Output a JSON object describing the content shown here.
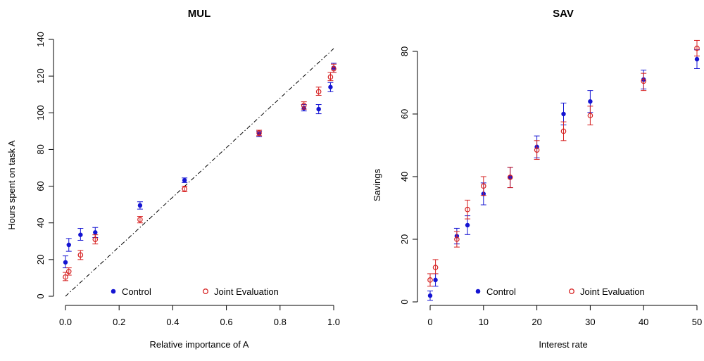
{
  "chart_data": [
    {
      "type": "scatter",
      "title": "MUL",
      "xlabel": "Relative importance of A",
      "ylabel": "Hours spent on task A",
      "xlim": [
        0,
        1
      ],
      "ylim": [
        0,
        140
      ],
      "xticks": [
        "0.0",
        "0.2",
        "0.4",
        "0.6",
        "0.8",
        "1.0"
      ],
      "yticks": [
        "0",
        "20",
        "40",
        "60",
        "80",
        "100",
        "120",
        "140"
      ],
      "grid": false,
      "legend": "bottom",
      "reference_line": {
        "from": [
          0,
          0
        ],
        "to": [
          1,
          135
        ],
        "style": "dot-dash"
      },
      "series": [
        {
          "name": "Control",
          "marker": "filled-circle",
          "color": "#1414d2",
          "points": [
            {
              "x": 0.0,
              "y": 18.5,
              "lo": 15.5,
              "hi": 22.0
            },
            {
              "x": 0.0125,
              "y": 28.0,
              "lo": 24.5,
              "hi": 31.5
            },
            {
              "x": 0.056,
              "y": 33.5,
              "lo": 30.5,
              "hi": 37.0
            },
            {
              "x": 0.111,
              "y": 34.8,
              "lo": 32.0,
              "hi": 37.5
            },
            {
              "x": 0.278,
              "y": 49.5,
              "lo": 47.5,
              "hi": 51.5
            },
            {
              "x": 0.444,
              "y": 63.2,
              "lo": 62.0,
              "hi": 64.5
            },
            {
              "x": 0.722,
              "y": 88.5,
              "lo": 87.0,
              "hi": 90.0
            },
            {
              "x": 0.889,
              "y": 102.5,
              "lo": 101.0,
              "hi": 104.5
            },
            {
              "x": 0.944,
              "y": 102.0,
              "lo": 99.5,
              "hi": 104.5
            },
            {
              "x": 0.988,
              "y": 114.0,
              "lo": 111.5,
              "hi": 116.5
            },
            {
              "x": 1.0,
              "y": 124.5,
              "lo": 122.0,
              "hi": 127.0
            }
          ]
        },
        {
          "name": "Joint Evaluation",
          "marker": "open-circle",
          "color": "#d62020",
          "points": [
            {
              "x": 0.0,
              "y": 10.5,
              "lo": 8.5,
              "hi": 13.0
            },
            {
              "x": 0.0125,
              "y": 13.5,
              "lo": 11.5,
              "hi": 15.5
            },
            {
              "x": 0.056,
              "y": 22.5,
              "lo": 20.0,
              "hi": 25.0
            },
            {
              "x": 0.111,
              "y": 31.0,
              "lo": 28.5,
              "hi": 33.5
            },
            {
              "x": 0.278,
              "y": 41.8,
              "lo": 40.0,
              "hi": 43.5
            },
            {
              "x": 0.444,
              "y": 58.5,
              "lo": 57.0,
              "hi": 60.0
            },
            {
              "x": 0.722,
              "y": 89.0,
              "lo": 87.5,
              "hi": 90.5
            },
            {
              "x": 0.889,
              "y": 104.0,
              "lo": 102.0,
              "hi": 106.0
            },
            {
              "x": 0.944,
              "y": 111.5,
              "lo": 109.5,
              "hi": 114.0
            },
            {
              "x": 0.988,
              "y": 119.5,
              "lo": 117.5,
              "hi": 122.0
            },
            {
              "x": 1.0,
              "y": 124.0,
              "lo": 122.0,
              "hi": 126.5
            }
          ]
        }
      ]
    },
    {
      "type": "scatter",
      "title": "SAV",
      "xlabel": "Interest rate",
      "ylabel": "Savings",
      "xlim": [
        0,
        50
      ],
      "ylim": [
        0,
        85
      ],
      "xticks": [
        "0",
        "10",
        "20",
        "30",
        "40",
        "50"
      ],
      "yticks": [
        "0",
        "20",
        "40",
        "60",
        "80"
      ],
      "grid": false,
      "legend": "bottom",
      "series": [
        {
          "name": "Control",
          "marker": "filled-circle",
          "color": "#1414d2",
          "points": [
            {
              "x": 0,
              "y": 2.0,
              "lo": 0.5,
              "hi": 3.5
            },
            {
              "x": 1,
              "y": 7.0,
              "lo": 5.0,
              "hi": 9.0
            },
            {
              "x": 5,
              "y": 21.0,
              "lo": 18.5,
              "hi": 23.5
            },
            {
              "x": 7,
              "y": 24.5,
              "lo": 21.5,
              "hi": 27.5
            },
            {
              "x": 10,
              "y": 34.5,
              "lo": 31.0,
              "hi": 38.0
            },
            {
              "x": 15,
              "y": 39.8,
              "lo": 36.5,
              "hi": 43.0
            },
            {
              "x": 20,
              "y": 49.5,
              "lo": 46.0,
              "hi": 53.0
            },
            {
              "x": 25,
              "y": 60.0,
              "lo": 56.5,
              "hi": 63.5
            },
            {
              "x": 30,
              "y": 64.0,
              "lo": 60.5,
              "hi": 67.5
            },
            {
              "x": 40,
              "y": 71.0,
              "lo": 68.0,
              "hi": 74.0
            },
            {
              "x": 50,
              "y": 77.5,
              "lo": 74.5,
              "hi": 80.5
            }
          ]
        },
        {
          "name": "Joint Evaluation",
          "marker": "open-circle",
          "color": "#d62020",
          "points": [
            {
              "x": 0,
              "y": 7.0,
              "lo": 5.0,
              "hi": 9.0
            },
            {
              "x": 1,
              "y": 11.0,
              "lo": 9.0,
              "hi": 13.5
            },
            {
              "x": 5,
              "y": 20.0,
              "lo": 17.5,
              "hi": 22.5
            },
            {
              "x": 7,
              "y": 29.5,
              "lo": 26.5,
              "hi": 32.5
            },
            {
              "x": 10,
              "y": 37.0,
              "lo": 34.0,
              "hi": 40.0
            },
            {
              "x": 15,
              "y": 39.8,
              "lo": 36.5,
              "hi": 43.0
            },
            {
              "x": 20,
              "y": 48.5,
              "lo": 45.5,
              "hi": 51.5
            },
            {
              "x": 25,
              "y": 54.5,
              "lo": 51.5,
              "hi": 57.5
            },
            {
              "x": 30,
              "y": 59.5,
              "lo": 56.5,
              "hi": 62.5
            },
            {
              "x": 40,
              "y": 70.5,
              "lo": 67.5,
              "hi": 73.0
            },
            {
              "x": 50,
              "y": 81.0,
              "lo": 78.5,
              "hi": 83.5
            }
          ]
        }
      ]
    }
  ]
}
